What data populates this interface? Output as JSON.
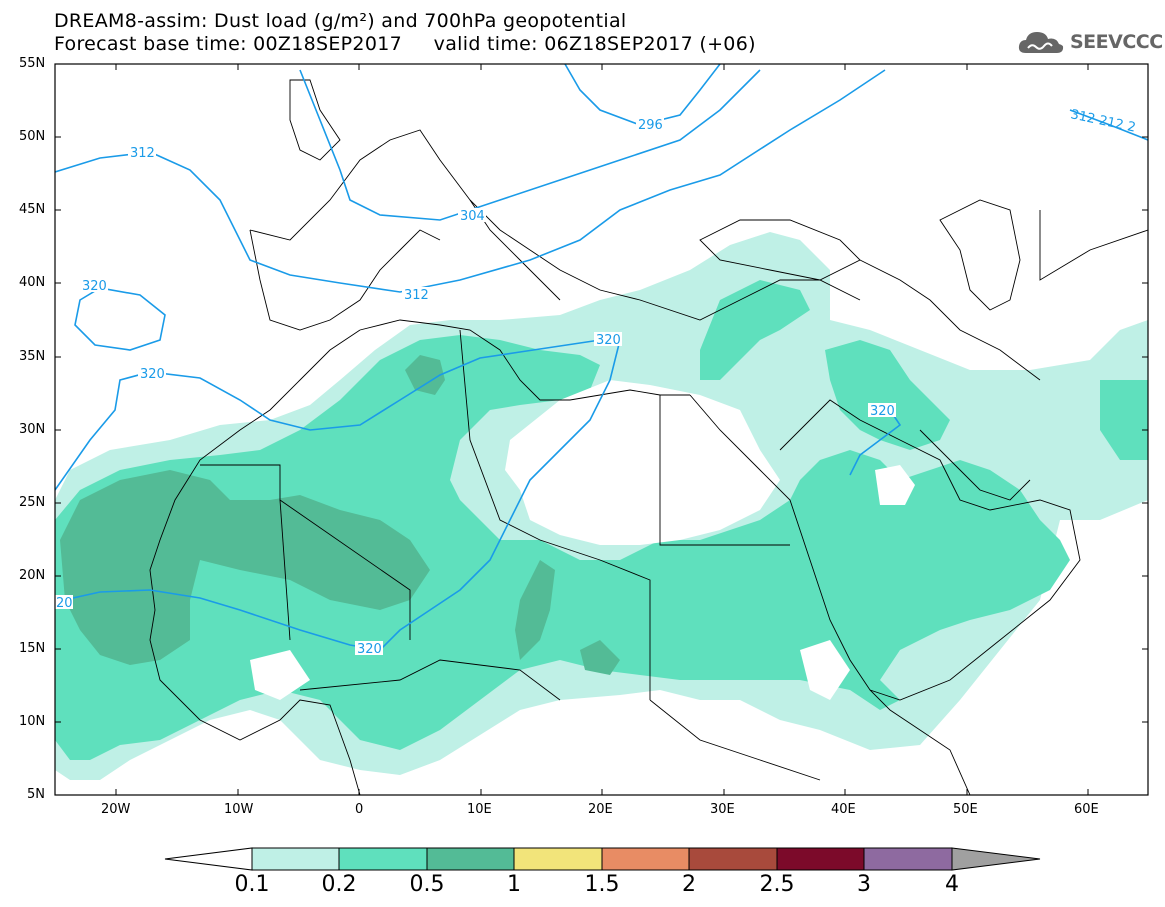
{
  "title": {
    "line1": "DREAM8-assim: Dust load (g/m²) and 700hPa geopotential",
    "line2": "Forecast base time: 00Z18SEP2017     valid time: 06Z18SEP2017 (+06)"
  },
  "logo": {
    "text": "SEEVCCC",
    "icon": "cloud-icon"
  },
  "axes": {
    "lat_labels": [
      "55N",
      "50N",
      "45N",
      "40N",
      "35N",
      "30N",
      "25N",
      "20N",
      "15N",
      "10N",
      "5N"
    ],
    "lon_labels": [
      "20W",
      "10W",
      "0",
      "10E",
      "20E",
      "30E",
      "40E",
      "50E",
      "60E"
    ]
  },
  "contour_labels": [
    "312",
    "304",
    "296",
    "312",
    "320",
    "320",
    "320",
    "320",
    "320",
    "20",
    "312 212 2"
  ],
  "colorbar": {
    "labels": [
      "0.1",
      "0.2",
      "0.5",
      "1",
      "1.5",
      "2",
      "2.5",
      "3",
      "4"
    ],
    "colors": [
      "#bff0e6",
      "#5fe0bd",
      "#53bb96",
      "#f2e47a",
      "#e88c64",
      "#a84a3c",
      "#7c0a2a",
      "#8e6aa0",
      "#a0a0a0"
    ]
  },
  "map_colors": {
    "dust_light": "#bff0e6",
    "dust_mid": "#5fe0bd",
    "dust_dark": "#53bb96",
    "contour": "#1a9be8"
  }
}
